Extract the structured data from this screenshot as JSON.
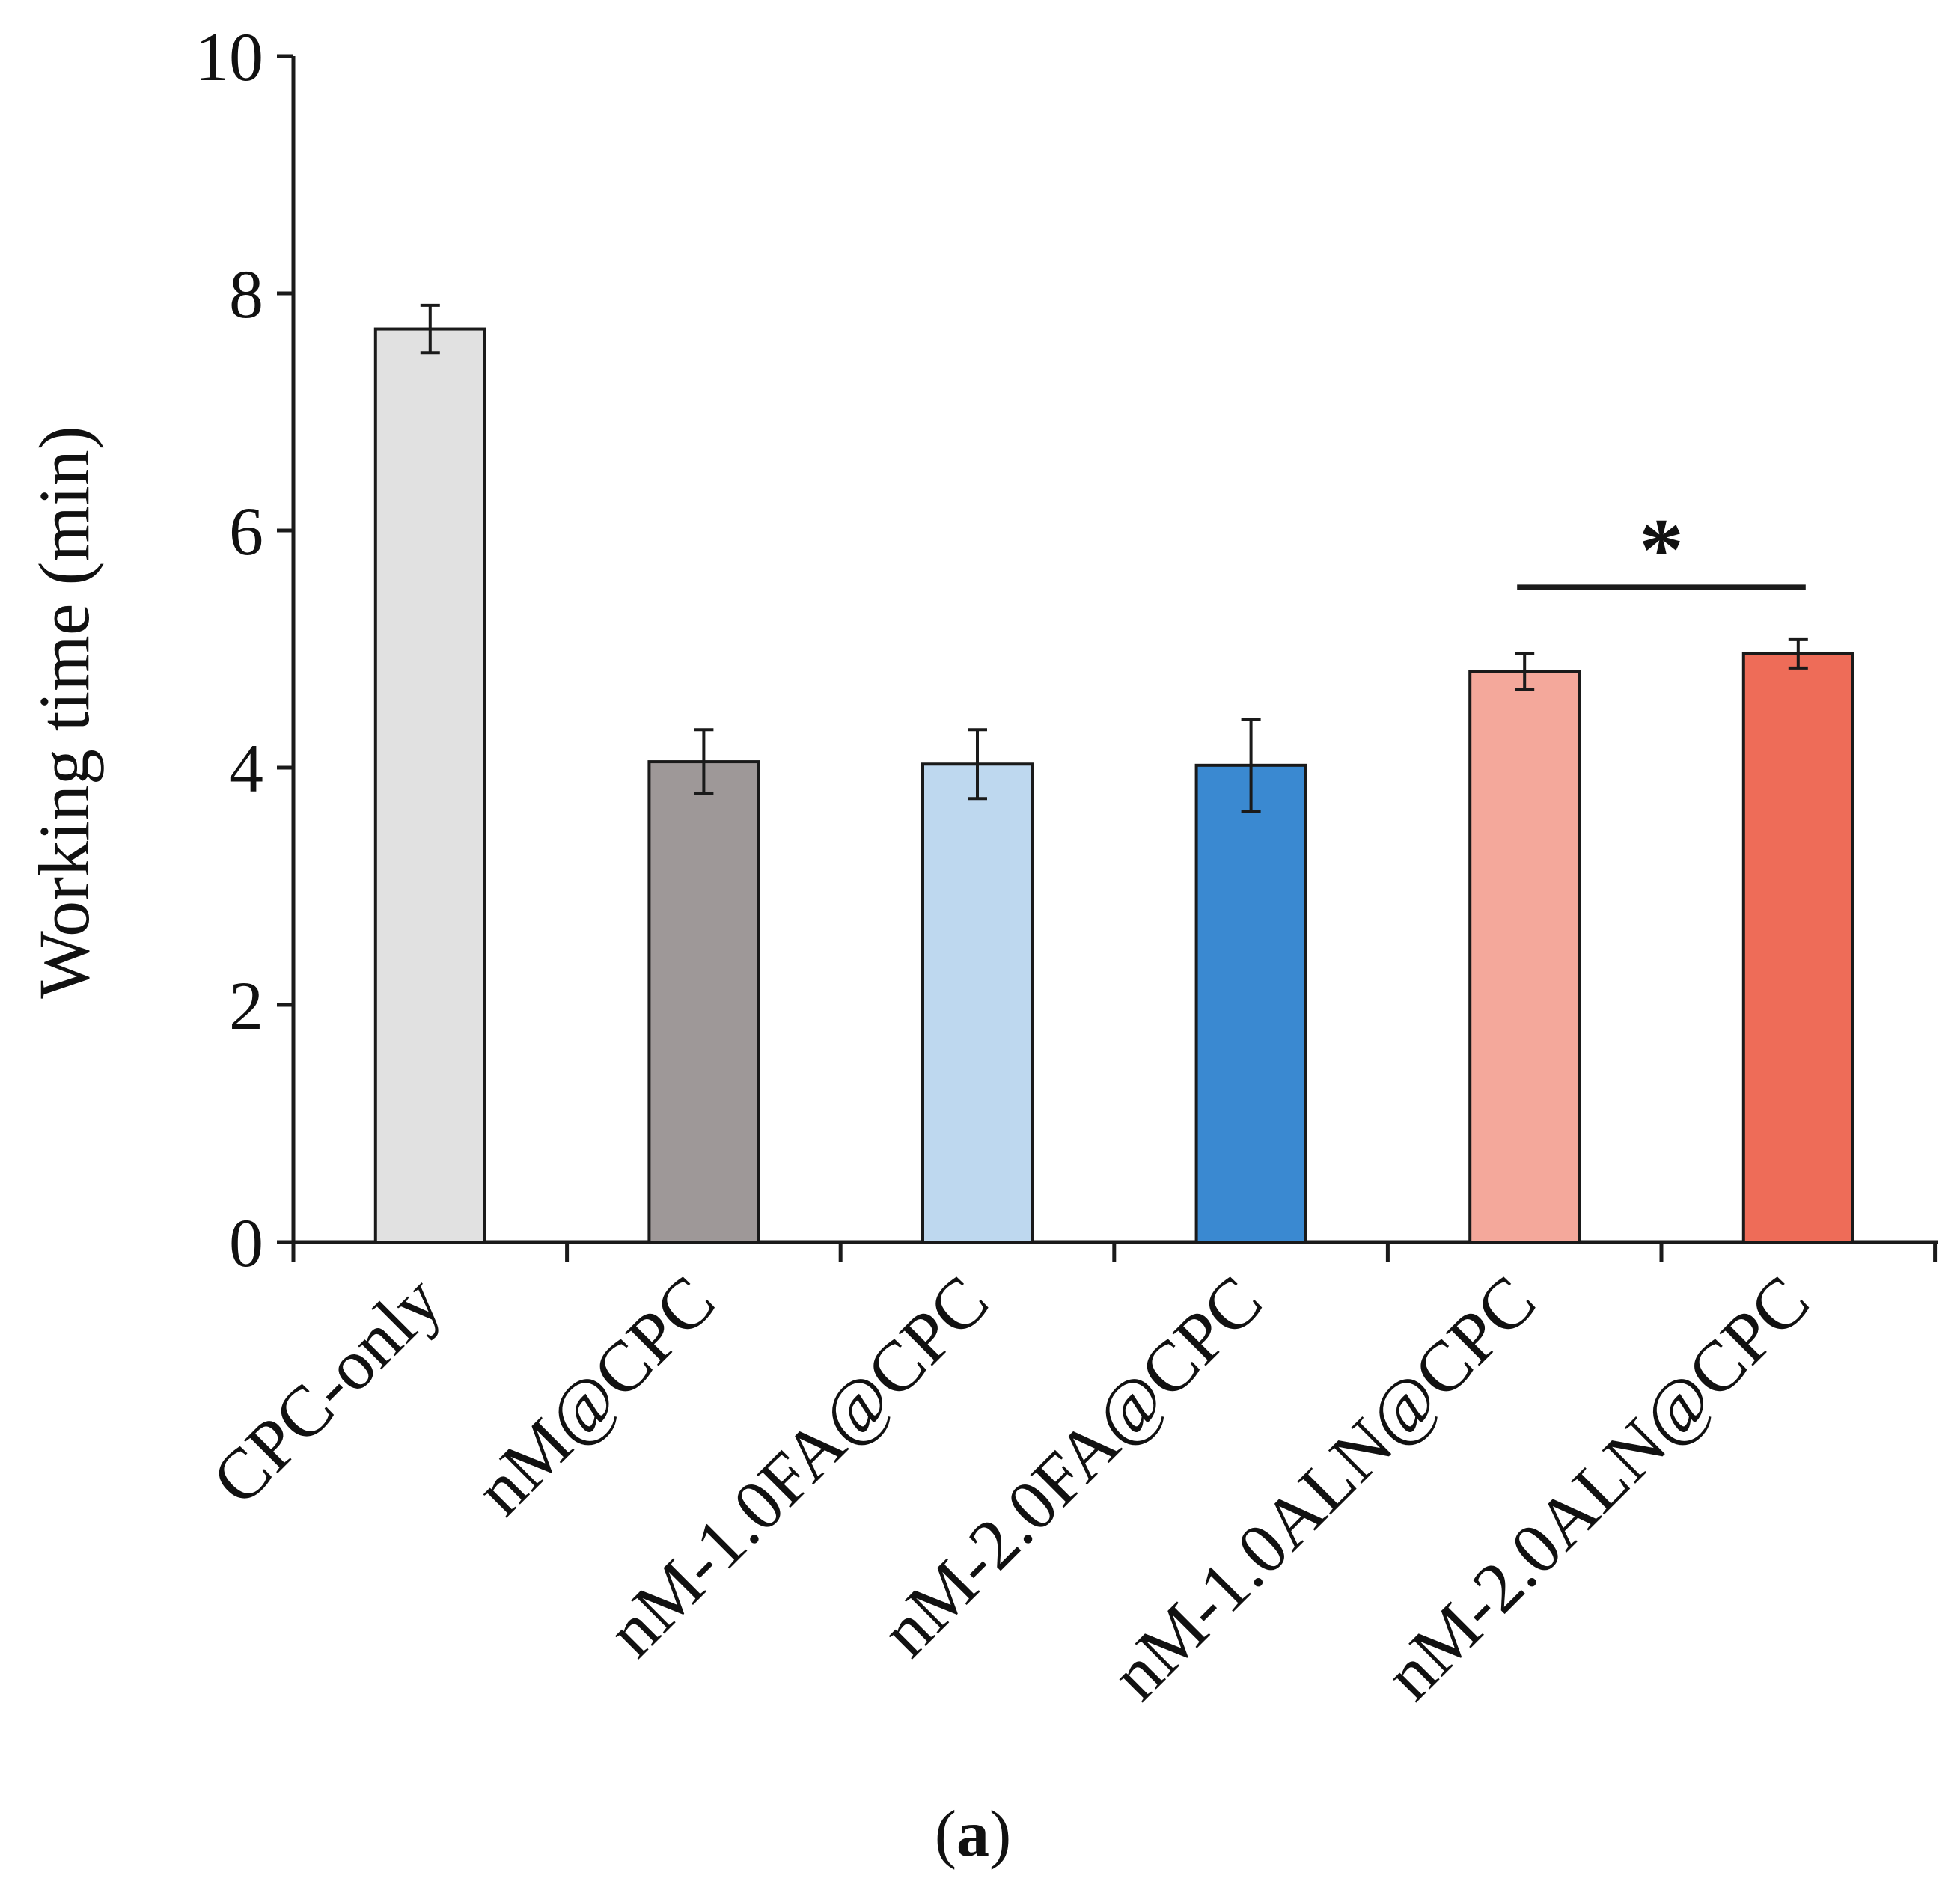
{
  "chart_data": {
    "type": "bar",
    "title": "",
    "xlabel": "",
    "ylabel": "Working time (min)",
    "ylim": [
      0,
      10
    ],
    "yticks": [
      0,
      2,
      4,
      6,
      8,
      10
    ],
    "grid": false,
    "categories": [
      "CPC-only",
      "nM@CPC",
      "nM-1.0FA@CPC",
      "nM-2.0FA@CPC",
      "nM-1.0ALN@CPC",
      "nM-2.0ALN@CPC"
    ],
    "values": [
      7.7,
      4.05,
      4.03,
      4.02,
      4.81,
      4.96
    ],
    "errors": [
      0.2,
      0.27,
      0.29,
      0.39,
      0.15,
      0.12
    ],
    "colors": [
      "#e1e1e1",
      "#9e9898",
      "#bed8ef",
      "#3a89d1",
      "#f4a89b",
      "#ee6c58"
    ],
    "edge_color": "#1a1a1a",
    "significance": [
      {
        "from": "nM-1.0ALN@CPC",
        "to": "nM-2.0ALN@CPC",
        "label": "*"
      }
    ],
    "panel_label": "(a)"
  }
}
